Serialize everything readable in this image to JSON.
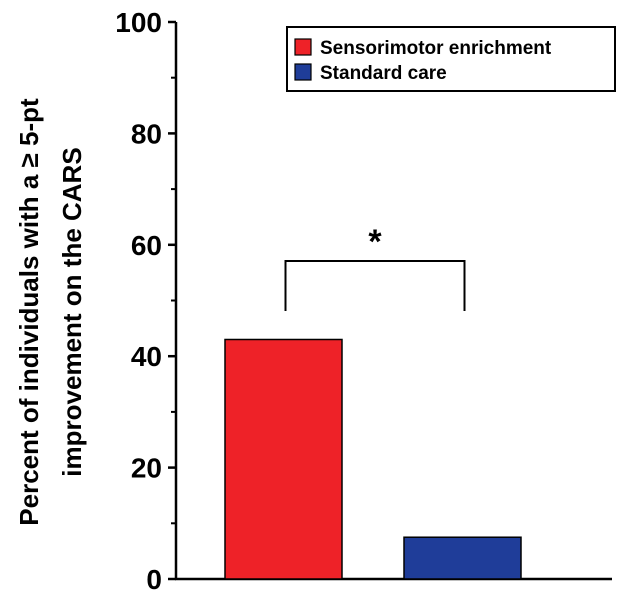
{
  "chart_data": {
    "type": "bar",
    "title": "",
    "xlabel": "",
    "ylabel_line1": "Percent of individuals with a ≥ 5-pt",
    "ylabel_line2": "improvement on the CARS",
    "ylim": [
      0,
      100
    ],
    "yticks": [
      "0",
      "20",
      "40",
      "60",
      "80",
      "100"
    ],
    "legend_position": "top-right",
    "grid": false,
    "series": [
      {
        "name": "Sensorimotor enrichment",
        "color": "#ee2228",
        "value": 43
      },
      {
        "name": "Standard care",
        "color": "#1f3d99",
        "value": 7.5
      }
    ],
    "annotation": "*"
  }
}
